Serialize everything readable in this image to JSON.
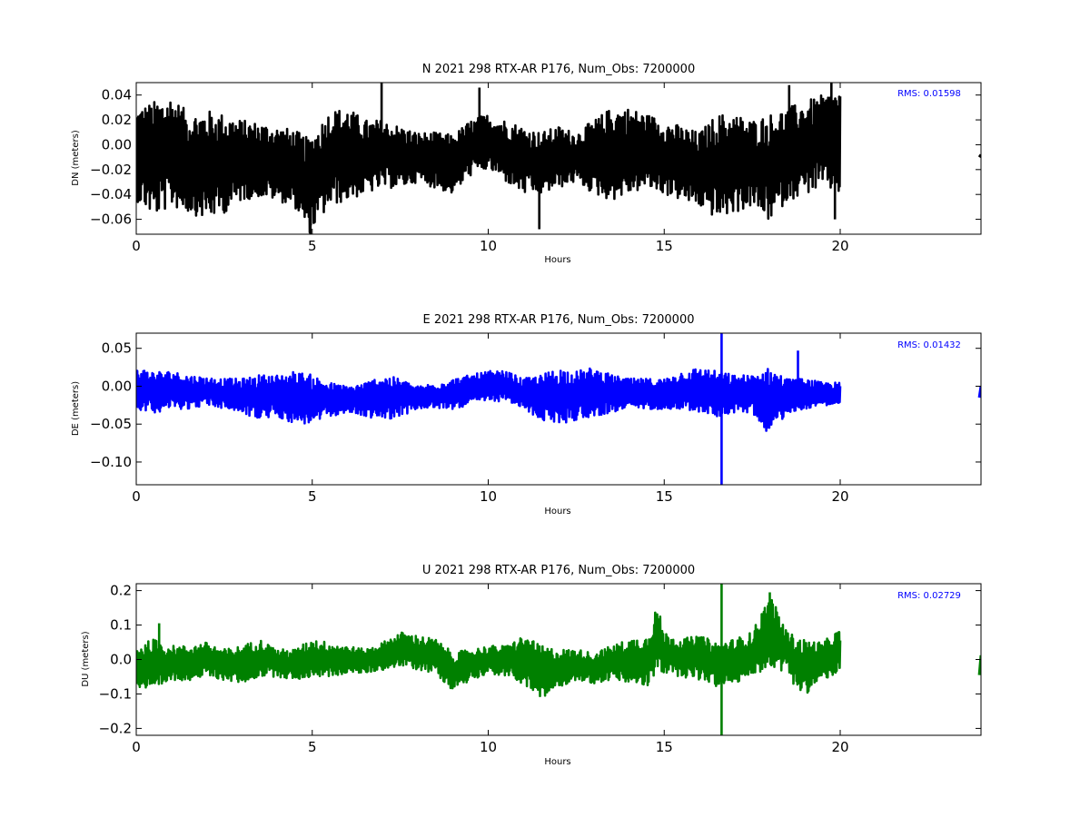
{
  "figure": {
    "background": "#ffffff"
  },
  "chart_data": [
    {
      "type": "line",
      "title": "N 2021 298 RTX-AR  P176, Num_Obs: 7200000",
      "xlabel": "Hours",
      "ylabel": "DN (meters)",
      "xlim": [
        0,
        24
      ],
      "ylim": [
        -0.072,
        0.05
      ],
      "x_ticks": [
        0,
        5,
        10,
        15,
        20
      ],
      "x_tick_labels": [
        "0",
        "5",
        "10",
        "15",
        "20"
      ],
      "y_ticks": [
        -0.06,
        -0.04,
        -0.02,
        0.0,
        0.02,
        0.04
      ],
      "y_tick_labels": [
        "−0.06",
        "−0.04",
        "−0.02",
        "0.00",
        "0.02",
        "0.04"
      ],
      "annotation": "RMS:  0.01598",
      "annotation_color": "#0000ff",
      "color": "#000000",
      "legend": "none",
      "grid": false,
      "series": [
        {
          "x_range": [
            0,
            20
          ],
          "envelope": [
            {
              "x": 0.0,
              "lo": -0.045,
              "hi": 0.03
            },
            {
              "x": 0.5,
              "lo": -0.058,
              "hi": 0.035
            },
            {
              "x": 1.0,
              "lo": -0.05,
              "hi": 0.04
            },
            {
              "x": 1.5,
              "lo": -0.055,
              "hi": 0.025
            },
            {
              "x": 2.0,
              "lo": -0.06,
              "hi": 0.028
            },
            {
              "x": 2.5,
              "lo": -0.055,
              "hi": 0.025
            },
            {
              "x": 3.0,
              "lo": -0.045,
              "hi": 0.02
            },
            {
              "x": 3.5,
              "lo": -0.042,
              "hi": 0.018
            },
            {
              "x": 4.0,
              "lo": -0.045,
              "hi": 0.015
            },
            {
              "x": 4.5,
              "lo": -0.05,
              "hi": 0.012
            },
            {
              "x": 4.9,
              "lo": -0.072,
              "hi": 0.005
            },
            {
              "x": 5.5,
              "lo": -0.05,
              "hi": 0.028
            },
            {
              "x": 6.0,
              "lo": -0.045,
              "hi": 0.03
            },
            {
              "x": 6.5,
              "lo": -0.04,
              "hi": 0.02
            },
            {
              "x": 7.0,
              "lo": -0.035,
              "hi": 0.02
            },
            {
              "x": 7.5,
              "lo": -0.035,
              "hi": 0.015
            },
            {
              "x": 8.0,
              "lo": -0.03,
              "hi": 0.01
            },
            {
              "x": 8.5,
              "lo": -0.035,
              "hi": 0.01
            },
            {
              "x": 9.0,
              "lo": -0.04,
              "hi": 0.008
            },
            {
              "x": 9.5,
              "lo": -0.025,
              "hi": 0.02
            },
            {
              "x": 10.0,
              "lo": -0.02,
              "hi": 0.025
            },
            {
              "x": 10.5,
              "lo": -0.03,
              "hi": 0.02
            },
            {
              "x": 11.0,
              "lo": -0.04,
              "hi": 0.015
            },
            {
              "x": 11.5,
              "lo": -0.04,
              "hi": 0.01
            },
            {
              "x": 12.0,
              "lo": -0.035,
              "hi": 0.015
            },
            {
              "x": 12.5,
              "lo": -0.03,
              "hi": 0.01
            },
            {
              "x": 13.0,
              "lo": -0.04,
              "hi": 0.02
            },
            {
              "x": 13.5,
              "lo": -0.045,
              "hi": 0.03
            },
            {
              "x": 14.0,
              "lo": -0.04,
              "hi": 0.03
            },
            {
              "x": 14.5,
              "lo": -0.035,
              "hi": 0.025
            },
            {
              "x": 15.0,
              "lo": -0.04,
              "hi": 0.02
            },
            {
              "x": 15.5,
              "lo": -0.045,
              "hi": 0.015
            },
            {
              "x": 16.0,
              "lo": -0.05,
              "hi": 0.01
            },
            {
              "x": 16.5,
              "lo": -0.06,
              "hi": 0.025
            },
            {
              "x": 17.0,
              "lo": -0.055,
              "hi": 0.025
            },
            {
              "x": 17.5,
              "lo": -0.05,
              "hi": 0.02
            },
            {
              "x": 18.0,
              "lo": -0.062,
              "hi": 0.025
            },
            {
              "x": 18.5,
              "lo": -0.045,
              "hi": 0.03
            },
            {
              "x": 19.0,
              "lo": -0.04,
              "hi": 0.035
            },
            {
              "x": 19.5,
              "lo": -0.035,
              "hi": 0.04
            },
            {
              "x": 20.0,
              "lo": -0.04,
              "hi": 0.045
            }
          ],
          "spikes": [
            {
              "x": 6.97,
              "y": 0.05
            },
            {
              "x": 9.75,
              "y": 0.046
            },
            {
              "x": 11.45,
              "y": -0.068
            },
            {
              "x": 4.95,
              "y": -0.072
            },
            {
              "x": 18.55,
              "y": 0.048
            },
            {
              "x": 19.75,
              "y": 0.05
            },
            {
              "x": 19.85,
              "y": -0.06
            }
          ],
          "tail": [
            {
              "x": 23.95,
              "y": -0.01
            },
            {
              "x": 24.0,
              "y": -0.008
            }
          ]
        }
      ]
    },
    {
      "type": "line",
      "title": "E 2021 298 RTX-AR  P176, Num_Obs: 7200000",
      "xlabel": "Hours",
      "ylabel": "DE (meters)",
      "xlim": [
        0,
        24
      ],
      "ylim": [
        -0.13,
        0.07
      ],
      "x_ticks": [
        0,
        5,
        10,
        15,
        20
      ],
      "x_tick_labels": [
        "0",
        "5",
        "10",
        "15",
        "20"
      ],
      "y_ticks": [
        -0.1,
        -0.05,
        0.0,
        0.05
      ],
      "y_tick_labels": [
        "−0.10",
        "−0.05",
        "0.00",
        "0.05"
      ],
      "annotation": "RMS:  0.01432",
      "annotation_color": "#0000ff",
      "color": "#0000ff",
      "legend": "none",
      "grid": false,
      "series": [
        {
          "x_range": [
            0,
            20
          ],
          "envelope": [
            {
              "x": 0.0,
              "lo": -0.03,
              "hi": 0.025
            },
            {
              "x": 0.5,
              "lo": -0.035,
              "hi": 0.02
            },
            {
              "x": 1.0,
              "lo": -0.03,
              "hi": 0.02
            },
            {
              "x": 1.5,
              "lo": -0.03,
              "hi": 0.015
            },
            {
              "x": 2.0,
              "lo": -0.025,
              "hi": 0.012
            },
            {
              "x": 2.5,
              "lo": -0.03,
              "hi": 0.01
            },
            {
              "x": 3.0,
              "lo": -0.035,
              "hi": 0.01
            },
            {
              "x": 3.5,
              "lo": -0.045,
              "hi": 0.015
            },
            {
              "x": 4.0,
              "lo": -0.04,
              "hi": 0.015
            },
            {
              "x": 4.5,
              "lo": -0.05,
              "hi": 0.02
            },
            {
              "x": 5.0,
              "lo": -0.05,
              "hi": 0.015
            },
            {
              "x": 5.5,
              "lo": -0.04,
              "hi": 0.005
            },
            {
              "x": 6.0,
              "lo": -0.035,
              "hi": 0.0
            },
            {
              "x": 6.5,
              "lo": -0.04,
              "hi": 0.005
            },
            {
              "x": 7.0,
              "lo": -0.045,
              "hi": 0.015
            },
            {
              "x": 7.5,
              "lo": -0.04,
              "hi": 0.01
            },
            {
              "x": 8.0,
              "lo": -0.03,
              "hi": 0.0
            },
            {
              "x": 8.5,
              "lo": -0.03,
              "hi": 0.005
            },
            {
              "x": 9.0,
              "lo": -0.03,
              "hi": 0.01
            },
            {
              "x": 9.5,
              "lo": -0.025,
              "hi": 0.015
            },
            {
              "x": 10.0,
              "lo": -0.02,
              "hi": 0.02
            },
            {
              "x": 10.5,
              "lo": -0.02,
              "hi": 0.02
            },
            {
              "x": 11.0,
              "lo": -0.03,
              "hi": 0.01
            },
            {
              "x": 11.5,
              "lo": -0.045,
              "hi": 0.015
            },
            {
              "x": 12.0,
              "lo": -0.05,
              "hi": 0.025
            },
            {
              "x": 12.5,
              "lo": -0.045,
              "hi": 0.02
            },
            {
              "x": 13.0,
              "lo": -0.04,
              "hi": 0.025
            },
            {
              "x": 13.5,
              "lo": -0.035,
              "hi": 0.015
            },
            {
              "x": 14.0,
              "lo": -0.03,
              "hi": 0.01
            },
            {
              "x": 14.5,
              "lo": -0.03,
              "hi": 0.01
            },
            {
              "x": 15.0,
              "lo": -0.03,
              "hi": 0.01
            },
            {
              "x": 15.5,
              "lo": -0.03,
              "hi": 0.02
            },
            {
              "x": 16.0,
              "lo": -0.035,
              "hi": 0.025
            },
            {
              "x": 16.5,
              "lo": -0.04,
              "hi": 0.02
            },
            {
              "x": 17.0,
              "lo": -0.035,
              "hi": 0.015
            },
            {
              "x": 17.5,
              "lo": -0.035,
              "hi": 0.015
            },
            {
              "x": 18.0,
              "lo": -0.065,
              "hi": 0.025
            },
            {
              "x": 18.5,
              "lo": -0.035,
              "hi": 0.01
            },
            {
              "x": 19.0,
              "lo": -0.03,
              "hi": 0.01
            },
            {
              "x": 19.5,
              "lo": -0.025,
              "hi": 0.005
            },
            {
              "x": 20.0,
              "lo": -0.025,
              "hi": 0.005
            }
          ],
          "spikes": [
            {
              "x": 16.63,
              "y": 0.07
            },
            {
              "x": 16.63,
              "y": -0.13
            },
            {
              "x": 18.8,
              "y": 0.047
            }
          ],
          "tail": [
            {
              "x": 23.95,
              "y": -0.015
            },
            {
              "x": 24.0,
              "y": 0.0
            }
          ]
        }
      ]
    },
    {
      "type": "line",
      "title": "U 2021 298 RTX-AR  P176, Num_Obs: 7200000",
      "xlabel": "Hours",
      "ylabel": "DU (meters)",
      "xlim": [
        0,
        24
      ],
      "ylim": [
        -0.22,
        0.22
      ],
      "x_ticks": [
        0,
        5,
        10,
        15,
        20
      ],
      "x_tick_labels": [
        "0",
        "5",
        "10",
        "15",
        "20"
      ],
      "y_ticks": [
        -0.2,
        -0.1,
        0.0,
        0.1,
        0.2
      ],
      "y_tick_labels": [
        "−0.2",
        "−0.1",
        "0.0",
        "0.1",
        "0.2"
      ],
      "annotation": "RMS:  0.02729",
      "annotation_color": "#0000ff",
      "color": "#008000",
      "legend": "none",
      "grid": false,
      "series": [
        {
          "x_range": [
            0,
            20
          ],
          "envelope": [
            {
              "x": 0.0,
              "lo": -0.08,
              "hi": 0.04
            },
            {
              "x": 0.5,
              "lo": -0.1,
              "hi": 0.06
            },
            {
              "x": 1.0,
              "lo": -0.06,
              "hi": 0.04
            },
            {
              "x": 1.5,
              "lo": -0.06,
              "hi": 0.04
            },
            {
              "x": 2.0,
              "lo": -0.05,
              "hi": 0.05
            },
            {
              "x": 2.5,
              "lo": -0.06,
              "hi": 0.03
            },
            {
              "x": 3.0,
              "lo": -0.07,
              "hi": 0.04
            },
            {
              "x": 3.5,
              "lo": -0.05,
              "hi": 0.06
            },
            {
              "x": 4.0,
              "lo": -0.05,
              "hi": 0.03
            },
            {
              "x": 4.5,
              "lo": -0.06,
              "hi": 0.03
            },
            {
              "x": 5.0,
              "lo": -0.05,
              "hi": 0.06
            },
            {
              "x": 5.5,
              "lo": -0.05,
              "hi": 0.05
            },
            {
              "x": 6.0,
              "lo": -0.04,
              "hi": 0.04
            },
            {
              "x": 6.5,
              "lo": -0.04,
              "hi": 0.03
            },
            {
              "x": 7.0,
              "lo": -0.03,
              "hi": 0.05
            },
            {
              "x": 7.5,
              "lo": -0.02,
              "hi": 0.08
            },
            {
              "x": 8.0,
              "lo": -0.03,
              "hi": 0.07
            },
            {
              "x": 8.5,
              "lo": -0.04,
              "hi": 0.06
            },
            {
              "x": 9.0,
              "lo": -0.09,
              "hi": 0.02
            },
            {
              "x": 9.5,
              "lo": -0.06,
              "hi": 0.03
            },
            {
              "x": 10.0,
              "lo": -0.04,
              "hi": 0.04
            },
            {
              "x": 10.5,
              "lo": -0.05,
              "hi": 0.04
            },
            {
              "x": 11.0,
              "lo": -0.07,
              "hi": 0.07
            },
            {
              "x": 11.5,
              "lo": -0.12,
              "hi": 0.04
            },
            {
              "x": 12.0,
              "lo": -0.08,
              "hi": 0.03
            },
            {
              "x": 12.5,
              "lo": -0.06,
              "hi": 0.03
            },
            {
              "x": 13.0,
              "lo": -0.07,
              "hi": 0.02
            },
            {
              "x": 13.5,
              "lo": -0.06,
              "hi": 0.04
            },
            {
              "x": 14.0,
              "lo": -0.07,
              "hi": 0.06
            },
            {
              "x": 14.5,
              "lo": -0.08,
              "hi": 0.07
            },
            {
              "x": 14.8,
              "lo": -0.05,
              "hi": 0.16
            },
            {
              "x": 15.0,
              "lo": -0.04,
              "hi": 0.08
            },
            {
              "x": 15.5,
              "lo": -0.05,
              "hi": 0.06
            },
            {
              "x": 16.0,
              "lo": -0.06,
              "hi": 0.07
            },
            {
              "x": 16.5,
              "lo": -0.08,
              "hi": 0.05
            },
            {
              "x": 17.0,
              "lo": -0.07,
              "hi": 0.06
            },
            {
              "x": 17.5,
              "lo": -0.05,
              "hi": 0.08
            },
            {
              "x": 18.0,
              "lo": -0.02,
              "hi": 0.19
            },
            {
              "x": 18.5,
              "lo": -0.04,
              "hi": 0.08
            },
            {
              "x": 18.9,
              "lo": -0.11,
              "hi": 0.06
            },
            {
              "x": 19.5,
              "lo": -0.06,
              "hi": 0.05
            },
            {
              "x": 20.0,
              "lo": -0.04,
              "hi": 0.09
            }
          ],
          "spikes": [
            {
              "x": 16.63,
              "y": 0.22
            },
            {
              "x": 16.63,
              "y": -0.22
            },
            {
              "x": 0.65,
              "y": 0.105
            },
            {
              "x": 18.0,
              "y": 0.195
            }
          ],
          "tail": [
            {
              "x": 23.95,
              "y": -0.045
            },
            {
              "x": 24.0,
              "y": 0.012
            }
          ]
        }
      ]
    }
  ]
}
